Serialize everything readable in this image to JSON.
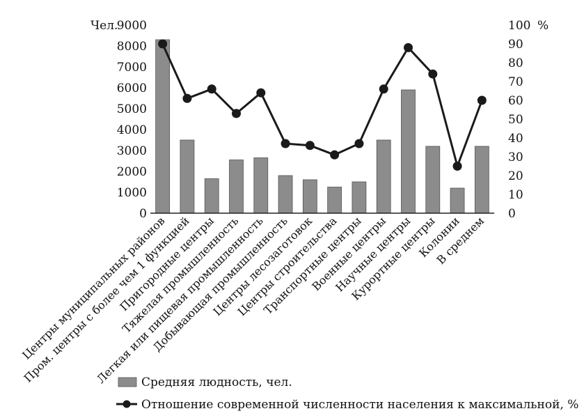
{
  "chart_data": {
    "type": "bar+line",
    "left_axis": {
      "unit_label": "Чел.",
      "ylim": [
        0,
        9000
      ],
      "ticks": [
        "0",
        "1000",
        "2000",
        "3000",
        "4000",
        "5000",
        "6000",
        "7000",
        "8000",
        "9000"
      ]
    },
    "right_axis": {
      "unit_label": "%",
      "ylim": [
        0,
        100
      ],
      "ticks": [
        "0",
        "10",
        "20",
        "30",
        "40",
        "50",
        "60",
        "70",
        "80",
        "90",
        "100"
      ]
    },
    "categories": [
      "Центры муниципальных районов",
      "Пром. центры с более чем 1 функцией",
      "Пригородные центры",
      "Тяжелая промышленность",
      "Легкая или пищевая промышленность",
      "Добывающая промышленность",
      "Центры лесозаготовок",
      "Центры строительства",
      "Транспортные центры",
      "Военные центры",
      "Научные центры",
      "Курортные центры",
      "Колонии",
      "В среднем"
    ],
    "series": [
      {
        "name": "Средняя людность, чел.",
        "kind": "bar",
        "axis": "left",
        "color": "#8c8c8c",
        "values": [
          8300,
          3500,
          1650,
          2550,
          2650,
          1800,
          1600,
          1250,
          1500,
          3500,
          5900,
          3200,
          1200,
          3200
        ]
      },
      {
        "name": "Отношение современной численности населения к максимальной, %",
        "kind": "line",
        "axis": "right",
        "color": "#1a1a1a",
        "values": [
          90,
          61,
          66,
          53,
          64,
          37,
          36,
          31,
          37,
          66,
          88,
          74,
          25,
          60
        ]
      }
    ],
    "grid": false,
    "legend_position": "bottom"
  }
}
